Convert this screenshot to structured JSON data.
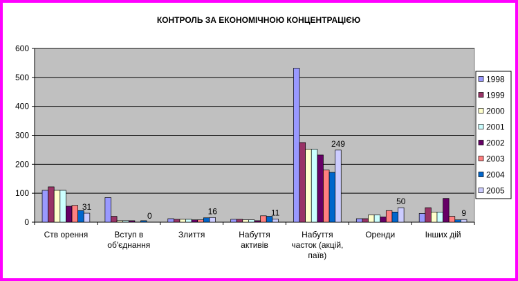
{
  "chart_data": {
    "type": "bar",
    "title": "КОНТРОЛЬ ЗА ЕКОНОМІЧНОЮ КОНЦЕНТРАЦІЄЮ",
    "xlabel": "",
    "ylabel": "",
    "ylim": [
      0,
      600
    ],
    "yticks": [
      0,
      100,
      200,
      300,
      400,
      500,
      600
    ],
    "grid": true,
    "legend_position": "right",
    "categories": [
      [
        "Ств орення"
      ],
      [
        "Вступ  в",
        "об'єднання"
      ],
      [
        "Злиття"
      ],
      [
        "Набуття",
        "активів"
      ],
      [
        "Набуття",
        "часток (акцій,",
        "паїв)"
      ],
      [
        "Оренди"
      ],
      [
        "Інших дій"
      ]
    ],
    "series": [
      {
        "name": "1998",
        "color": "#9999ff",
        "values": [
          110,
          85,
          12,
          10,
          532,
          12,
          30
        ]
      },
      {
        "name": "1999",
        "color": "#993366",
        "values": [
          122,
          20,
          10,
          10,
          275,
          12,
          50
        ]
      },
      {
        "name": "2000",
        "color": "#ffffcc",
        "values": [
          110,
          5,
          10,
          8,
          252,
          25,
          35
        ]
      },
      {
        "name": "2001",
        "color": "#ccffff",
        "values": [
          110,
          5,
          10,
          8,
          252,
          25,
          35
        ]
      },
      {
        "name": "2002",
        "color": "#660066",
        "values": [
          55,
          5,
          8,
          5,
          232,
          18,
          82
        ]
      },
      {
        "name": "2003",
        "color": "#ff8080",
        "values": [
          58,
          0,
          8,
          22,
          180,
          40,
          20
        ]
      },
      {
        "name": "2004",
        "color": "#0066cc",
        "values": [
          40,
          5,
          15,
          20,
          172,
          35,
          8
        ]
      },
      {
        "name": "2005",
        "color": "#ccccff",
        "values": [
          31,
          0,
          16,
          11,
          249,
          50,
          9
        ]
      }
    ],
    "data_labels": [
      {
        "series": "2005",
        "category_index": 0,
        "text": "31"
      },
      {
        "series": "2005",
        "category_index": 1,
        "text": "0"
      },
      {
        "series": "2005",
        "category_index": 2,
        "text": "16"
      },
      {
        "series": "2005",
        "category_index": 3,
        "text": "11"
      },
      {
        "series": "2005",
        "category_index": 4,
        "text": "249"
      },
      {
        "series": "2005",
        "category_index": 5,
        "text": "50"
      },
      {
        "series": "2005",
        "category_index": 6,
        "text": "9"
      }
    ],
    "colors": {
      "plot_background": "#c0c0c0",
      "frame_border": "#ff00ff",
      "gridline": "#000000"
    }
  }
}
